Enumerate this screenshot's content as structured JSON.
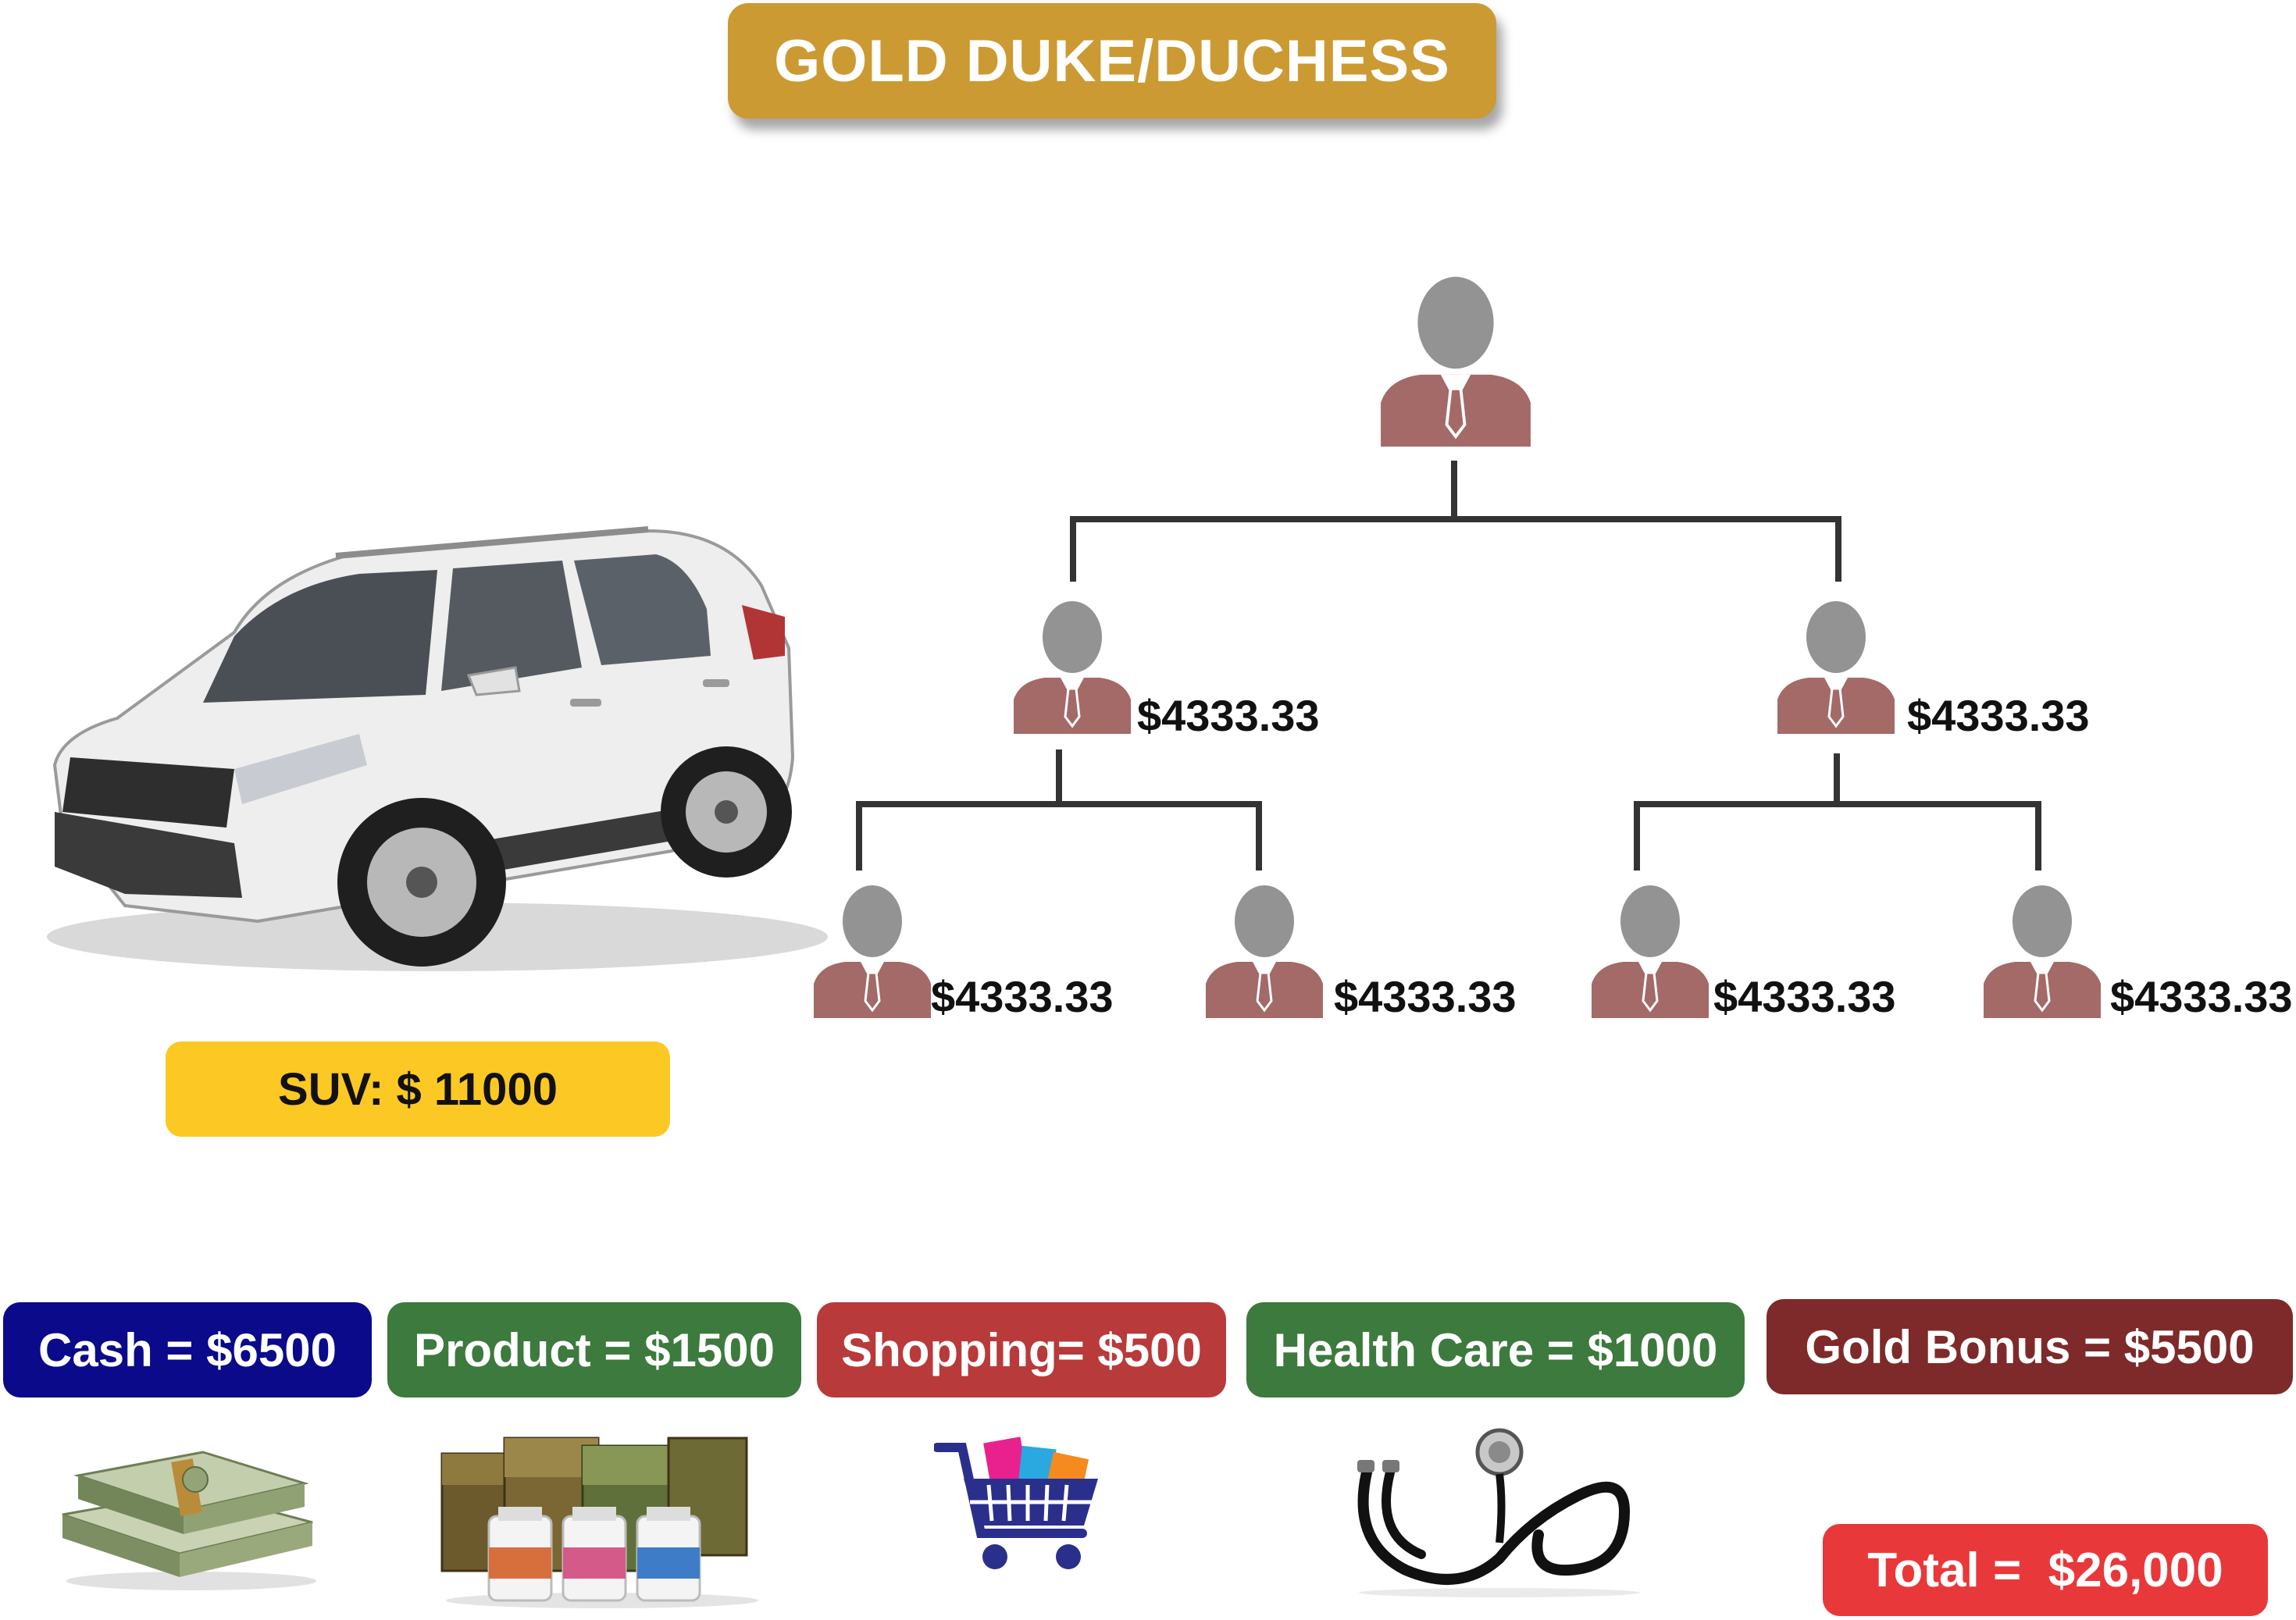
{
  "title": "GOLD DUKE/DUCHESS",
  "suv_label": "SUV: $ 11000",
  "tree": {
    "level2": [
      "$4333.33",
      "$4333.33"
    ],
    "level3": [
      "$4333.33",
      "$4333.33",
      "$4333.33",
      "$4333.33"
    ]
  },
  "rewards": [
    {
      "label": "Cash = $6500",
      "color": "#0a0a8a",
      "icon": "cash-stack-icon"
    },
    {
      "label": "Product = $1500",
      "color": "#3c7a3d",
      "icon": "tea-products-icon"
    },
    {
      "label": "Shopping= $500",
      "color": "#b83a3a",
      "icon": "shopping-cart-icon"
    },
    {
      "label": "Health Care = $1000",
      "color": "#3c7a3d",
      "icon": "stethoscope-icon"
    },
    {
      "label": "Gold Bonus = $5500",
      "color": "#7e2a2a",
      "icon": "gold-bonus"
    }
  ],
  "total": "Total =  $26,000",
  "colors": {
    "gold": "#cc9a33",
    "suit": "#a36a68",
    "head": "#939393",
    "suv_badge": "#fcc823",
    "total": "#e8383a"
  }
}
